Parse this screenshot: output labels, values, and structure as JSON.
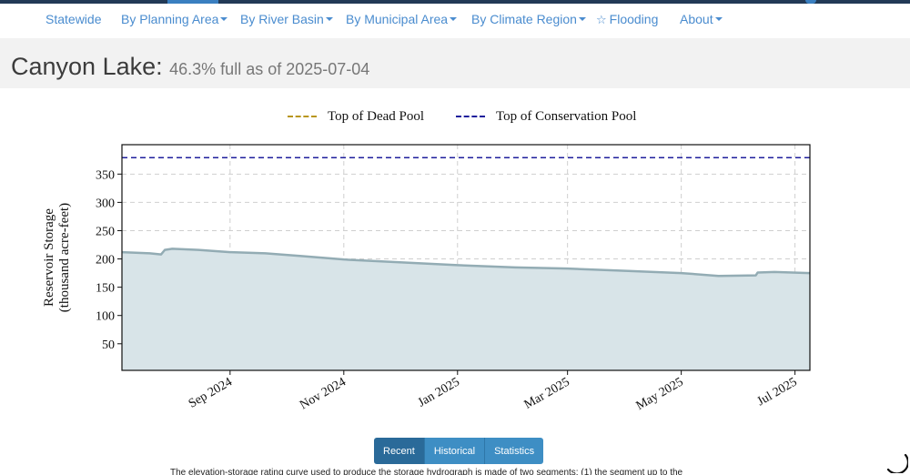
{
  "nav": {
    "items": [
      {
        "label": "Statewide",
        "dropdown": false
      },
      {
        "label": "By Planning Area",
        "dropdown": true
      },
      {
        "label": "By River Basin",
        "dropdown": true
      },
      {
        "label": "By Municipal Area",
        "dropdown": true
      },
      {
        "label": "By Climate Region",
        "dropdown": true
      },
      {
        "label": "Flooding",
        "dropdown": false,
        "icon": "star-outline-icon"
      },
      {
        "label": "About",
        "dropdown": true
      }
    ]
  },
  "header": {
    "title": "Canyon Lake:",
    "subtitle": "46.3% full as of 2025-07-04"
  },
  "chart_data": {
    "type": "area",
    "title": "",
    "xlabel": "",
    "ylabel": "Reservoir Storage",
    "ylabel2": "(thousand acre-feet)",
    "xlim": [
      "2024-07-05",
      "2025-07-09"
    ],
    "ylim": [
      3,
      402
    ],
    "yticks": [
      50,
      100,
      150,
      200,
      250,
      300,
      350
    ],
    "xticks": [
      {
        "date": "2024-09-01",
        "label": "Sep 2024"
      },
      {
        "date": "2024-11-01",
        "label": "Nov 2024"
      },
      {
        "date": "2025-01-01",
        "label": "Jan 2025"
      },
      {
        "date": "2025-03-01",
        "label": "Mar 2025"
      },
      {
        "date": "2025-05-01",
        "label": "May 2025"
      },
      {
        "date": "2025-07-01",
        "label": "Jul 2025"
      }
    ],
    "grid": true,
    "legend_position": "top-center",
    "series": [
      {
        "name": "Storage",
        "color": "#93acb4",
        "fill": "#d8e4e8",
        "points": [
          [
            "2024-07-05",
            212
          ],
          [
            "2024-07-20",
            210
          ],
          [
            "2024-07-26",
            208
          ],
          [
            "2024-07-28",
            216
          ],
          [
            "2024-08-01",
            218
          ],
          [
            "2024-08-15",
            216
          ],
          [
            "2024-09-01",
            212
          ],
          [
            "2024-09-20",
            210
          ],
          [
            "2024-10-10",
            205
          ],
          [
            "2024-11-01",
            199
          ],
          [
            "2024-12-01",
            194
          ],
          [
            "2025-01-01",
            189
          ],
          [
            "2025-02-01",
            185
          ],
          [
            "2025-03-01",
            183
          ],
          [
            "2025-04-01",
            179
          ],
          [
            "2025-05-01",
            175
          ],
          [
            "2025-05-21",
            170
          ],
          [
            "2025-06-10",
            171
          ],
          [
            "2025-06-11",
            176
          ],
          [
            "2025-06-20",
            177
          ],
          [
            "2025-07-09",
            175
          ]
        ]
      }
    ],
    "reference_lines": [
      {
        "name": "Top of Dead Pool",
        "color": "#b8961e",
        "value": 0
      },
      {
        "name": "Top of Conservation Pool",
        "color": "#1f1f9c",
        "value": 379
      }
    ]
  },
  "tabs": [
    {
      "label": "Recent",
      "active": true
    },
    {
      "label": "Historical",
      "active": false
    },
    {
      "label": "Statistics",
      "active": false
    }
  ],
  "footer_note": "The elevation-storage rating curve used to produce the storage hydrograph is made of two segments: (1) the segment up to the"
}
